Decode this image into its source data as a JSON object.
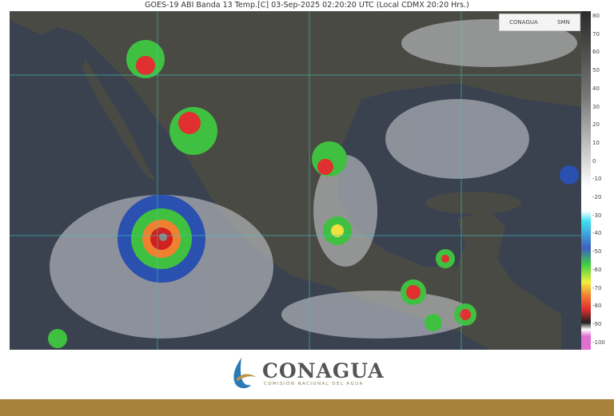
{
  "title": "GOES-19 ABI Banda 13 Temp.[C] 03-Sep-2025 02:20:20 UTC (Local CDMX  20:20 Hrs.)",
  "map_logos": {
    "left": "CONAGUA",
    "right": "SMN"
  },
  "colorbar": {
    "unit": "C",
    "ticks": [
      "80",
      "70",
      "60",
      "50",
      "40",
      "30",
      "20",
      "10",
      "0",
      "-10",
      "-20",
      "-30",
      "-40",
      "-50",
      "-60",
      "-70",
      "-80",
      "-90",
      "-100"
    ],
    "colors": {
      "warm": "#2a2a2a",
      "neutral": "#ffffff",
      "cyan": "#40e0f0",
      "blue": "#4060c0",
      "green": "#40d040",
      "yellow": "#f0f040",
      "orange": "#f08030",
      "red": "#e03030",
      "black": "#202020",
      "pink": "#e070d0"
    }
  },
  "colors": {
    "land": "#4a4a44",
    "sea": "#3a4250",
    "grid": "#3ec8c0",
    "border": "#e0e0e0",
    "footer": "#a8823a"
  },
  "footer": {
    "brand": "CONAGUA",
    "subtitle": "COMISIÓN NACIONAL DEL AGUA"
  }
}
